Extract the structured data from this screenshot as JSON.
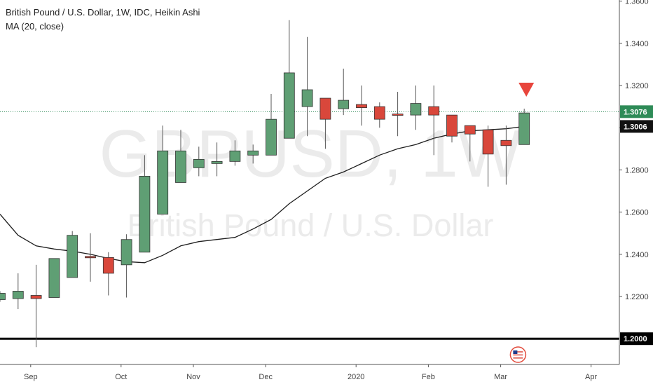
{
  "legend": {
    "title": "British Pound / U.S. Dollar, 1W, IDC, Heikin Ashi",
    "indicator": "MA (20, close)"
  },
  "watermark": {
    "symbol": "GBPUSD, 1W",
    "name": "British Pound / U.S. Dollar"
  },
  "colors": {
    "up": "#5f9f74",
    "down": "#d9473b",
    "ma": "#1e1e1e",
    "price_line": "#2e8b57",
    "signal": "#e8453c",
    "axis_text": "#444444"
  },
  "chart_data": {
    "type": "candlestick",
    "style": "heikin-ashi",
    "ylim": [
      1.19,
      1.36
    ],
    "y_ticks": [
      "1.2200",
      "1.2400",
      "1.2600",
      "1.2800",
      "1.3000",
      "1.3200",
      "1.3400",
      "1.3600"
    ],
    "x_ticks": [
      {
        "label": "Sep",
        "index": 1
      },
      {
        "label": "Oct",
        "index": 6
      },
      {
        "label": "Nov",
        "index": 10
      },
      {
        "label": "Dec",
        "index": 14
      },
      {
        "label": "2020",
        "index": 19
      },
      {
        "label": "Feb",
        "index": 23
      },
      {
        "label": "Mar",
        "index": 27
      },
      {
        "label": "Apr",
        "index": 32
      }
    ],
    "candles": [
      {
        "open": 1.2185,
        "close": 1.2215,
        "high": 1.2225,
        "low": 1.2175
      },
      {
        "open": 1.219,
        "close": 1.2225,
        "high": 1.231,
        "low": 1.214
      },
      {
        "open": 1.2205,
        "close": 1.219,
        "high": 1.235,
        "low": 1.196
      },
      {
        "open": 1.2195,
        "close": 1.238,
        "high": 1.238,
        "low": 1.2195
      },
      {
        "open": 1.229,
        "close": 1.249,
        "high": 1.251,
        "low": 1.229
      },
      {
        "open": 1.239,
        "close": 1.2385,
        "high": 1.25,
        "low": 1.227
      },
      {
        "open": 1.2385,
        "close": 1.231,
        "high": 1.241,
        "low": 1.2205
      },
      {
        "open": 1.235,
        "close": 1.247,
        "high": 1.2495,
        "low": 1.2195
      },
      {
        "open": 1.241,
        "close": 1.277,
        "high": 1.287,
        "low": 1.241
      },
      {
        "open": 1.259,
        "close": 1.289,
        "high": 1.301,
        "low": 1.259
      },
      {
        "open": 1.274,
        "close": 1.289,
        "high": 1.299,
        "low": 1.274
      },
      {
        "open": 1.281,
        "close": 1.285,
        "high": 1.291,
        "low": 1.277
      },
      {
        "open": 1.283,
        "close": 1.284,
        "high": 1.293,
        "low": 1.277
      },
      {
        "open": 1.284,
        "close": 1.289,
        "high": 1.294,
        "low": 1.282
      },
      {
        "open": 1.287,
        "close": 1.289,
        "high": 1.292,
        "low": 1.283
      },
      {
        "open": 1.287,
        "close": 1.304,
        "high": 1.316,
        "low": 1.287
      },
      {
        "open": 1.295,
        "close": 1.326,
        "high": 1.351,
        "low": 1.295
      },
      {
        "open": 1.31,
        "close": 1.318,
        "high": 1.343,
        "low": 1.296
      },
      {
        "open": 1.314,
        "close": 1.304,
        "high": 1.314,
        "low": 1.29
      },
      {
        "open": 1.309,
        "close": 1.313,
        "high": 1.328,
        "low": 1.306
      },
      {
        "open": 1.311,
        "close": 1.3095,
        "high": 1.32,
        "low": 1.301
      },
      {
        "open": 1.31,
        "close": 1.304,
        "high": 1.312,
        "low": 1.3
      },
      {
        "open": 1.3065,
        "close": 1.306,
        "high": 1.317,
        "low": 1.296
      },
      {
        "open": 1.306,
        "close": 1.3115,
        "high": 1.32,
        "low": 1.299
      },
      {
        "open": 1.31,
        "close": 1.306,
        "high": 1.32,
        "low": 1.287
      },
      {
        "open": 1.306,
        "close": 1.296,
        "high": 1.306,
        "low": 1.293
      },
      {
        "open": 1.301,
        "close": 1.297,
        "high": 1.301,
        "low": 1.284
      },
      {
        "open": 1.299,
        "close": 1.2875,
        "high": 1.301,
        "low": 1.272
      },
      {
        "open": 1.294,
        "close": 1.2915,
        "high": 1.301,
        "low": 1.273
      },
      {
        "open": 1.292,
        "close": 1.307,
        "high": 1.309,
        "low": 1.292
      }
    ],
    "ma": [
      1.259,
      1.249,
      1.244,
      1.2425,
      1.2415,
      1.24,
      1.238,
      1.2365,
      1.236,
      1.2395,
      1.244,
      1.246,
      1.247,
      1.248,
      1.252,
      1.2565,
      1.264,
      1.27,
      1.276,
      1.279,
      1.283,
      1.287,
      1.29,
      1.292,
      1.295,
      1.297,
      1.2985,
      1.299,
      1.2995,
      1.3006
    ],
    "horizontal_lines": [
      {
        "value": 1.2,
        "label": "1.2000",
        "style": "solid-thick"
      }
    ],
    "price_line": {
      "value": 1.3076,
      "label": "1.3076"
    },
    "ma_label": {
      "value": 1.3006,
      "label": "1.3006"
    },
    "signal": {
      "type": "sell-arrow",
      "index": 29
    },
    "calendar_marker": {
      "index": 28
    }
  }
}
